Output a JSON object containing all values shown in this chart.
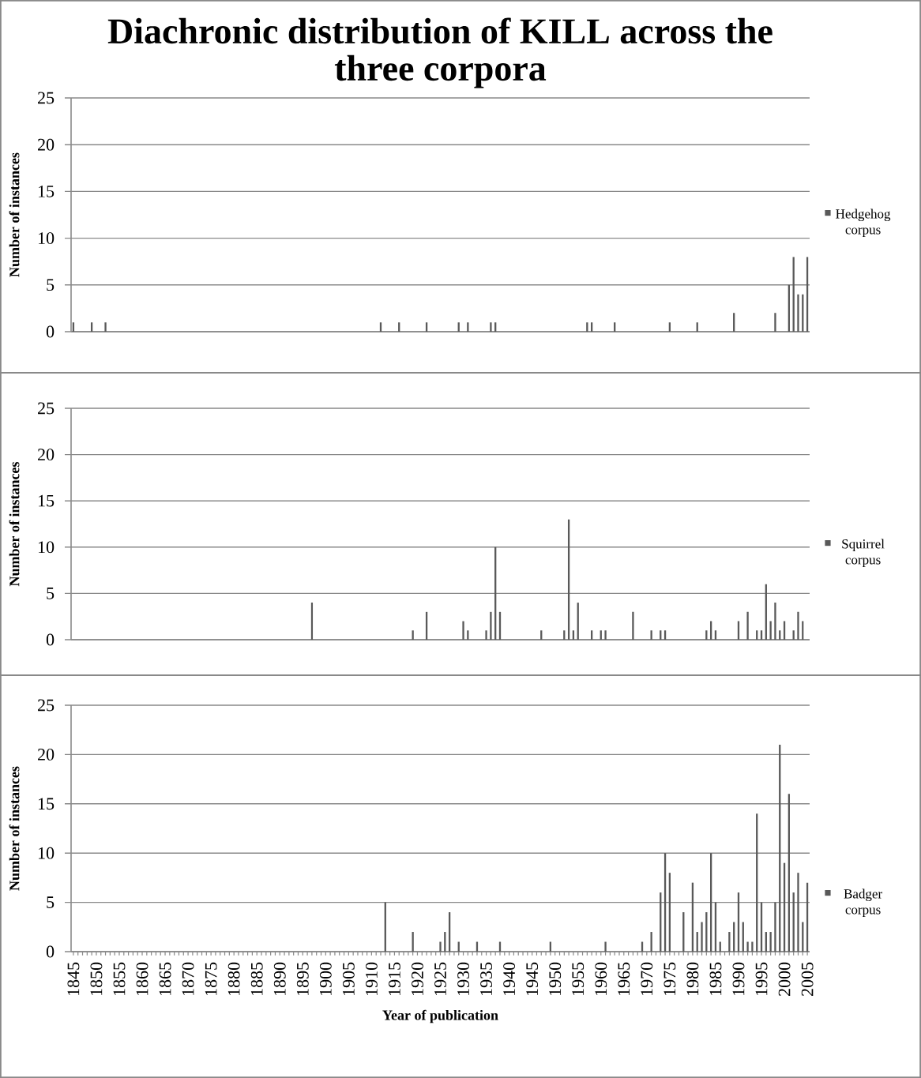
{
  "chart_data": [
    {
      "type": "bar",
      "title": "Diachronic distribution of KILL across the three corpora",
      "ylabel": "Number of instances",
      "series": [
        {
          "name": "Hedgehog corpus",
          "color": "#595959",
          "x": [
            1845,
            1849,
            1852,
            1912,
            1916,
            1922,
            1929,
            1931,
            1936,
            1937,
            1957,
            1958,
            1963,
            1975,
            1981,
            1989,
            1998,
            2001,
            2002,
            2003,
            2004,
            2005
          ],
          "values": [
            1,
            1,
            1,
            1,
            1,
            1,
            1,
            1,
            1,
            1,
            1,
            1,
            1,
            1,
            1,
            2,
            2,
            5,
            8,
            4,
            4,
            8
          ]
        }
      ],
      "xlim": [
        1844.5,
        2005.5
      ],
      "ylim": [
        0,
        25
      ],
      "yticks": [
        0,
        5,
        10,
        15,
        20,
        25
      ],
      "grid": "y",
      "legend": "right",
      "tick_labels": "y"
    },
    {
      "type": "bar",
      "ylabel": "Number of instances",
      "series": [
        {
          "name": "Squirrel corpus",
          "color": "#595959",
          "x": [
            1897,
            1919,
            1922,
            1930,
            1931,
            1935,
            1936,
            1937,
            1938,
            1947,
            1952,
            1953,
            1954,
            1955,
            1958,
            1960,
            1961,
            1967,
            1971,
            1973,
            1974,
            1983,
            1984,
            1985,
            1990,
            1992,
            1994,
            1995,
            1996,
            1997,
            1998,
            1999,
            2000,
            2002,
            2003,
            2004
          ],
          "values": [
            4,
            1,
            3,
            2,
            1,
            1,
            3,
            10,
            3,
            1,
            1,
            13,
            1,
            4,
            1,
            1,
            1,
            3,
            1,
            1,
            1,
            1,
            2,
            1,
            2,
            3,
            1,
            1,
            6,
            2,
            4,
            1,
            2,
            1,
            3,
            2
          ]
        }
      ],
      "xlim": [
        1844.5,
        2005.5
      ],
      "ylim": [
        0,
        25
      ],
      "yticks": [
        0,
        5,
        10,
        15,
        20,
        25
      ],
      "grid": "y",
      "legend": "right",
      "tick_labels": "y"
    },
    {
      "type": "bar",
      "xlabel": "Year of publication",
      "ylabel": "Number of instances",
      "series": [
        {
          "name": "Badger corpus",
          "color": "#595959",
          "x": [
            1913,
            1919,
            1925,
            1926,
            1927,
            1929,
            1933,
            1938,
            1949,
            1961,
            1969,
            1971,
            1973,
            1974,
            1975,
            1978,
            1980,
            1981,
            1982,
            1983,
            1984,
            1985,
            1986,
            1988,
            1989,
            1990,
            1991,
            1992,
            1993,
            1994,
            1995,
            1996,
            1997,
            1998,
            1999,
            2000,
            2001,
            2002,
            2003,
            2004,
            2005
          ],
          "values": [
            5,
            2,
            1,
            2,
            4,
            1,
            1,
            1,
            1,
            1,
            1,
            2,
            6,
            10,
            8,
            4,
            7,
            2,
            3,
            4,
            10,
            5,
            1,
            2,
            3,
            6,
            3,
            1,
            1,
            14,
            5,
            2,
            2,
            5,
            21,
            9,
            16,
            6,
            8,
            3,
            7
          ]
        }
      ],
      "xlim": [
        1844.5,
        2005.5
      ],
      "xticks": [
        1845,
        1850,
        1855,
        1860,
        1865,
        1870,
        1875,
        1880,
        1885,
        1890,
        1895,
        1900,
        1905,
        1910,
        1915,
        1920,
        1925,
        1930,
        1935,
        1940,
        1945,
        1950,
        1955,
        1960,
        1965,
        1970,
        1975,
        1980,
        1985,
        1990,
        1995,
        2000,
        2005
      ],
      "ylim": [
        0,
        25
      ],
      "yticks": [
        0,
        5,
        10,
        15,
        20,
        25
      ],
      "grid": "y",
      "legend": "right"
    }
  ]
}
